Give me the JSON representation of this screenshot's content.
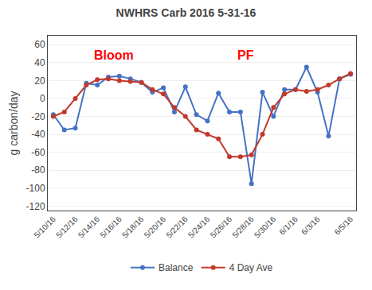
{
  "chart_data": {
    "type": "line",
    "title": "NWHRS Carb 2016 5-31-16",
    "ylabel": "g carbon/day",
    "categories": [
      "5/10/16",
      null,
      "5/12/16",
      null,
      "5/14/16",
      null,
      "5/16/16",
      null,
      "5/18/16",
      null,
      "5/20/16",
      null,
      "5/22/16",
      null,
      "5/24/16",
      null,
      "5/26/16",
      null,
      "5/28/16",
      null,
      "5/30/16",
      null,
      "6/1/16",
      null,
      "6/3/16",
      null,
      null,
      "6/5/16"
    ],
    "series": [
      {
        "name": "Balance",
        "color": "#4472C4",
        "marker": "circle",
        "line_style": "solid",
        "values": [
          -18,
          -35,
          -33,
          17,
          15,
          24,
          25,
          22,
          18,
          7,
          12,
          -15,
          13,
          -18,
          -25,
          6,
          -15,
          -15,
          -95,
          7,
          -20,
          10,
          10,
          35,
          7,
          -42,
          22,
          27
        ]
      },
      {
        "name": "4 Day Ave",
        "color": "#C0392B",
        "marker": "circle",
        "line_style": "solid",
        "values": [
          -20,
          -15,
          0,
          15,
          21,
          22,
          20,
          19,
          18,
          10,
          5,
          -10,
          -20,
          -35,
          -40,
          -45,
          -65,
          -65,
          -63,
          -40,
          -10,
          5,
          10,
          8,
          10,
          15,
          22,
          28
        ]
      }
    ],
    "ylim": [
      -125,
      70
    ],
    "yticks": [
      -120,
      -100,
      -80,
      -60,
      -40,
      -20,
      0,
      20,
      40,
      60
    ],
    "grid": true,
    "legend": "bottom",
    "annotations": [
      {
        "text": "Bloom",
        "x": 5.5,
        "y": 48,
        "color": "red"
      },
      {
        "text": "PF",
        "x": 17.5,
        "y": 48,
        "color": "red"
      }
    ]
  }
}
